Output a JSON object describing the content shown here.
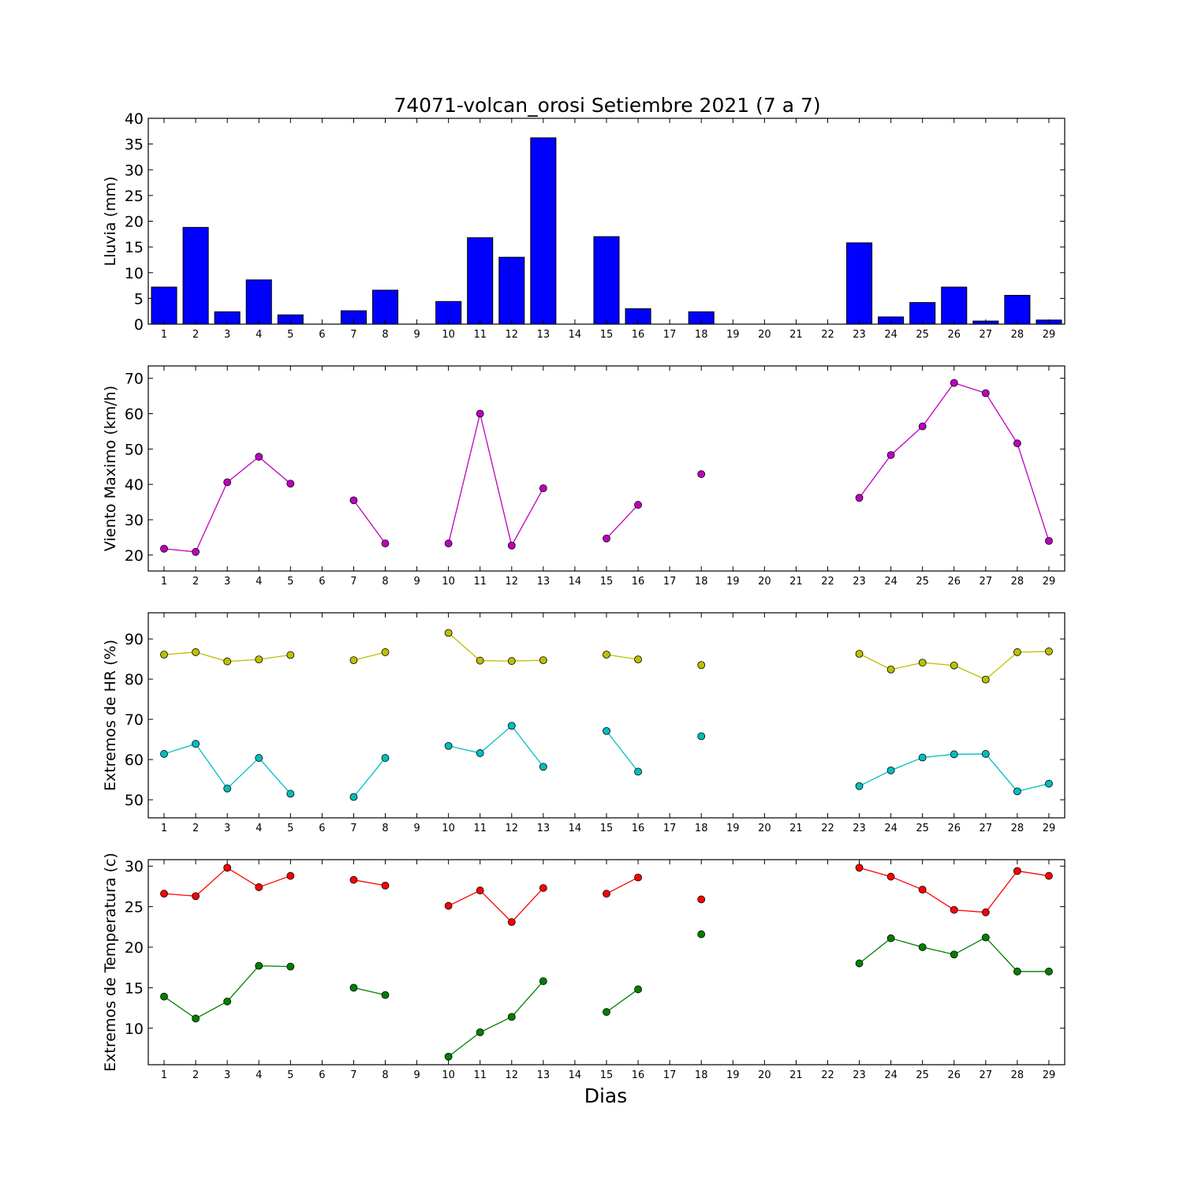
{
  "figure": {
    "title": "74071-volcan_orosi Setiembre 2021  (7 a 7)",
    "xlabel": "Dias"
  },
  "colors": {
    "rain": "#0000ff",
    "wind": "#bf00bf",
    "hr_max": "#bfbf00",
    "hr_min": "#00bfbf",
    "temp_max": "#ff0000",
    "temp_min": "#008000"
  },
  "chart_data": [
    {
      "type": "bar",
      "ylabel": "Lluvia (mm)",
      "ylim": [
        0,
        40
      ],
      "yticks": [
        0,
        5,
        10,
        15,
        20,
        25,
        30,
        35,
        40
      ],
      "categories": [
        "1",
        "2",
        "3",
        "4",
        "5",
        "6",
        "7",
        "8",
        "9",
        "10",
        "11",
        "12",
        "13",
        "14",
        "15",
        "16",
        "17",
        "18",
        "19",
        "20",
        "21",
        "22",
        "23",
        "24",
        "25",
        "26",
        "27",
        "28",
        "29"
      ],
      "series": [
        {
          "color_key": "rain",
          "values": [
            7.2,
            18.8,
            2.4,
            8.6,
            1.8,
            0,
            2.6,
            6.6,
            0,
            4.4,
            16.8,
            13.0,
            36.2,
            0,
            17.0,
            3.0,
            0,
            2.4,
            0,
            0,
            0,
            0,
            15.8,
            1.4,
            4.2,
            7.2,
            0.6,
            5.6,
            0.8
          ]
        }
      ]
    },
    {
      "type": "line",
      "ylabel": "Viento Maximo (km/h)",
      "ylim": [
        15.5,
        73.5
      ],
      "yticks": [
        20,
        30,
        40,
        50,
        60,
        70
      ],
      "categories": [
        "1",
        "2",
        "3",
        "4",
        "5",
        "6",
        "7",
        "8",
        "9",
        "10",
        "11",
        "12",
        "13",
        "14",
        "15",
        "16",
        "17",
        "18",
        "19",
        "20",
        "21",
        "22",
        "23",
        "24",
        "25",
        "26",
        "27",
        "28",
        "29"
      ],
      "series": [
        {
          "color_key": "wind",
          "values": [
            21.8,
            20.9,
            40.6,
            47.8,
            40.2,
            null,
            35.5,
            23.3,
            null,
            23.3,
            60.0,
            22.7,
            38.9,
            null,
            24.7,
            34.2,
            null,
            42.9,
            null,
            null,
            null,
            null,
            36.2,
            48.3,
            56.4,
            68.7,
            65.8,
            51.6,
            24.0
          ]
        }
      ]
    },
    {
      "type": "line",
      "ylabel": "Extremos de HR (%)",
      "ylim": [
        45.5,
        96.5
      ],
      "yticks": [
        50,
        60,
        70,
        80,
        90
      ],
      "categories": [
        "1",
        "2",
        "3",
        "4",
        "5",
        "6",
        "7",
        "8",
        "9",
        "10",
        "11",
        "12",
        "13",
        "14",
        "15",
        "16",
        "17",
        "18",
        "19",
        "20",
        "21",
        "22",
        "23",
        "24",
        "25",
        "26",
        "27",
        "28",
        "29"
      ],
      "series": [
        {
          "color_key": "hr_max",
          "values": [
            86.1,
            86.7,
            84.4,
            84.9,
            86.0,
            null,
            84.7,
            86.7,
            null,
            91.5,
            84.6,
            84.5,
            84.7,
            null,
            86.1,
            84.9,
            null,
            83.5,
            null,
            null,
            null,
            null,
            86.3,
            82.4,
            84.1,
            83.4,
            79.9,
            86.7,
            86.9
          ]
        },
        {
          "color_key": "hr_min",
          "values": [
            61.4,
            63.9,
            52.8,
            60.4,
            51.5,
            null,
            50.7,
            60.4,
            null,
            63.4,
            61.6,
            68.4,
            58.2,
            null,
            67.1,
            57.0,
            null,
            65.8,
            null,
            null,
            null,
            null,
            53.4,
            57.3,
            60.5,
            61.3,
            61.4,
            52.1,
            54.0
          ]
        }
      ]
    },
    {
      "type": "line",
      "ylabel": "Extremos de Temperatura (c)",
      "ylim": [
        5.5,
        30.8
      ],
      "yticks": [
        10,
        15,
        20,
        25,
        30
      ],
      "categories": [
        "1",
        "2",
        "3",
        "4",
        "5",
        "6",
        "7",
        "8",
        "9",
        "10",
        "11",
        "12",
        "13",
        "14",
        "15",
        "16",
        "17",
        "18",
        "19",
        "20",
        "21",
        "22",
        "23",
        "24",
        "25",
        "26",
        "27",
        "28",
        "29"
      ],
      "series": [
        {
          "color_key": "temp_max",
          "values": [
            26.6,
            26.3,
            29.8,
            27.4,
            28.8,
            null,
            28.3,
            27.6,
            null,
            25.1,
            27.0,
            23.1,
            27.3,
            null,
            26.6,
            28.6,
            null,
            25.9,
            null,
            null,
            null,
            null,
            29.8,
            28.7,
            27.1,
            24.6,
            24.3,
            29.4,
            28.8
          ]
        },
        {
          "color_key": "temp_min",
          "values": [
            13.9,
            11.2,
            13.3,
            17.7,
            17.6,
            null,
            15.0,
            14.1,
            null,
            6.5,
            9.5,
            11.4,
            15.8,
            null,
            12.0,
            14.8,
            null,
            21.6,
            null,
            null,
            null,
            null,
            18.0,
            21.1,
            20.0,
            19.1,
            21.2,
            17.0,
            17.0
          ]
        }
      ]
    }
  ]
}
